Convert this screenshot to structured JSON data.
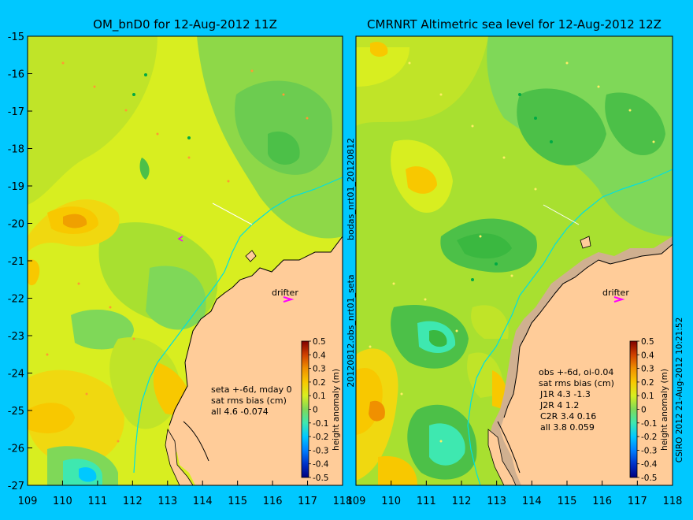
{
  "left_panel": {
    "title": "OM_bnD0 for 12-Aug-2012 11Z",
    "side_label": "bodas_nrt01_20120812",
    "side_label_2": "20120812.obs_nrt01_seta",
    "drifter_label": "drifter",
    "stats": [
      "seta +-6d, mday 0",
      "sat rms bias (cm)",
      "all 4.6 -0.074"
    ],
    "colorbar_label": "height anomaly (m)"
  },
  "right_panel": {
    "title": "CMRNRT Altimetric sea level  for 12-Aug-2012 12Z",
    "drifter_label": "drifter",
    "stats": [
      "obs +-6d, oi-0.04",
      "sat rms bias (cm)",
      "J1R   4.3  -1.3",
      "J2R   4  1.2",
      "C2R   3.4  0.16",
      "all 3.8  0.059"
    ],
    "colorbar_label": "height anomaly (m)",
    "credit": "CSIRO 2012  21-Aug-2012 10:21:52"
  },
  "axes": {
    "lat_ticks": [
      "-15",
      "-16",
      "-17",
      "-18",
      "-19",
      "-20",
      "-21",
      "-22",
      "-23",
      "-24",
      "-25",
      "-26",
      "-27"
    ],
    "lon_ticks": [
      "109",
      "110",
      "111",
      "112",
      "113",
      "114",
      "115",
      "116",
      "117",
      "118"
    ],
    "lon_ticks_right": [
      "109",
      "110",
      "111",
      "112",
      "113",
      "114",
      "115",
      "116",
      "117",
      "118"
    ],
    "lon_range": [
      109,
      118
    ],
    "lat_range": [
      -27,
      -15
    ]
  },
  "colorbar": {
    "ticks": [
      "0.5",
      "0.4",
      "0.3",
      "0.2",
      "0.1",
      "0",
      "-0.1",
      "-0.2",
      "-0.3",
      "-0.4",
      "-0.5"
    ],
    "range": [
      -0.5,
      0.5
    ],
    "colors": [
      "#00007f",
      "#0032c8",
      "#0080ff",
      "#00c8ff",
      "#3ee8b0",
      "#7fd858",
      "#a8e030",
      "#d8ee20",
      "#f8c800",
      "#f09000",
      "#e05800",
      "#c02800",
      "#800000"
    ]
  },
  "colors": {
    "background": "#00c8ff",
    "land": "#ffcc99",
    "shelf": "#d0b090",
    "coast_line": "#00e0e0"
  }
}
